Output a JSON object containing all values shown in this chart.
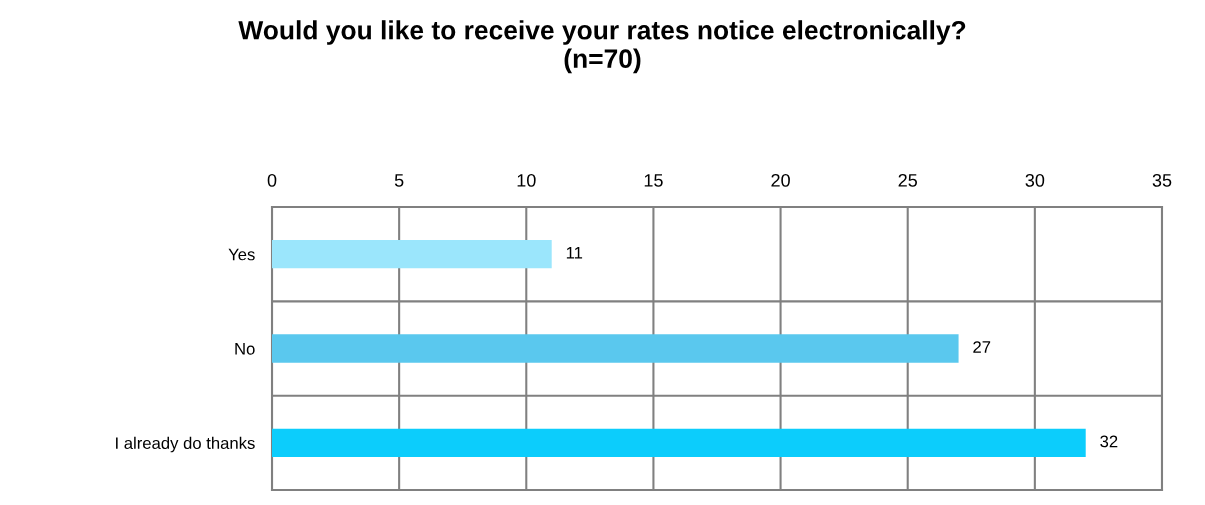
{
  "chart_data": {
    "type": "bar",
    "orientation": "horizontal",
    "title": "Would you like to receive your rates notice electronically?\n(n=70)",
    "categories": [
      "Yes",
      "No",
      "I already do thanks"
    ],
    "values": [
      11,
      27,
      32
    ],
    "colors": [
      "#9be6fc",
      "#5ac8ee",
      "#0ccdfc"
    ],
    "xlim": [
      0,
      35
    ],
    "xticks": [
      0,
      5,
      10,
      15,
      20,
      25,
      30,
      35
    ],
    "grid": true,
    "data_labels": true
  }
}
